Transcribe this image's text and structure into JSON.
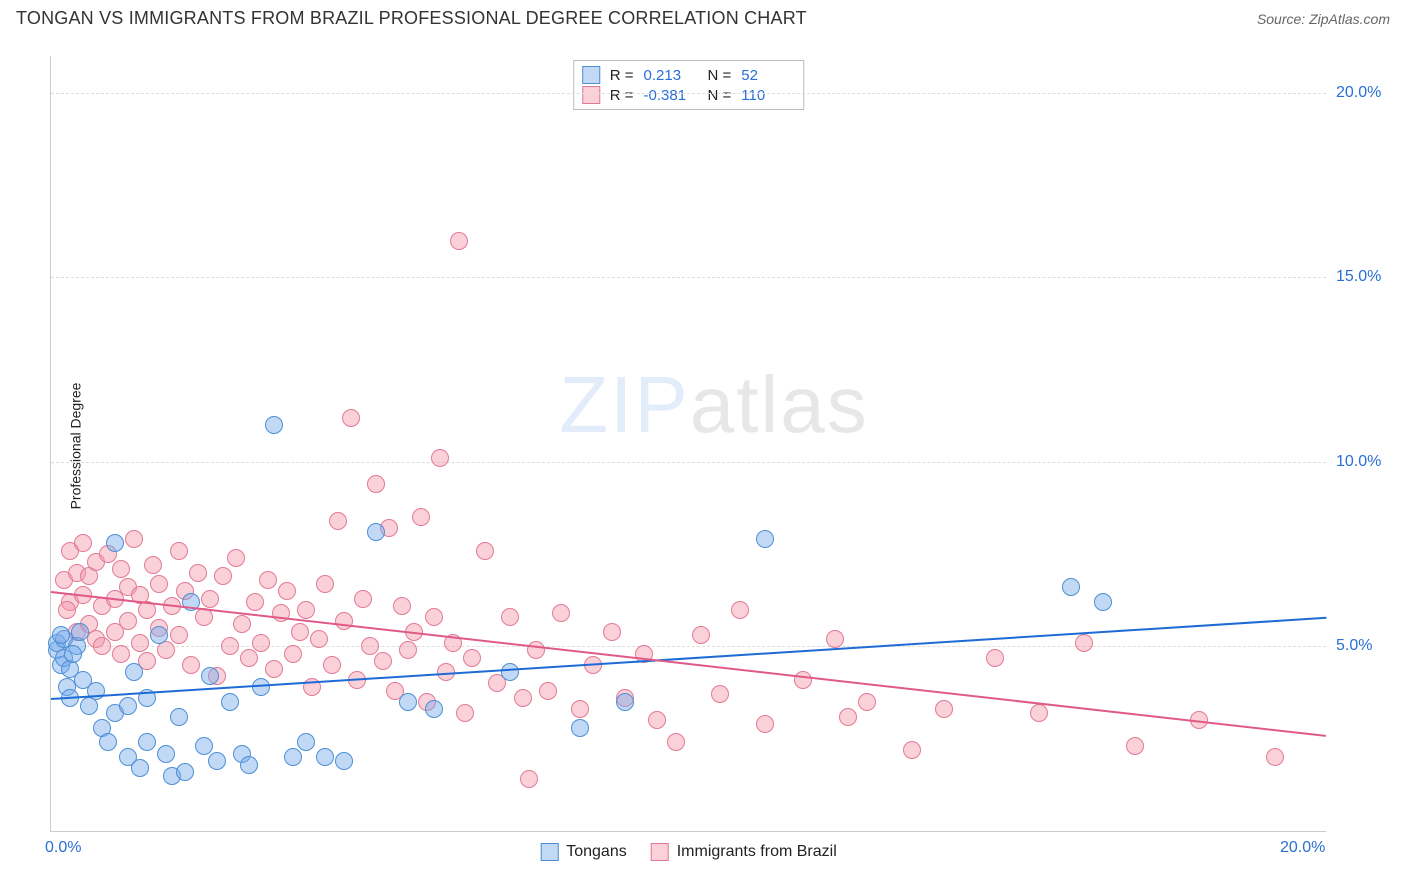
{
  "header": {
    "title": "TONGAN VS IMMIGRANTS FROM BRAZIL PROFESSIONAL DEGREE CORRELATION CHART",
    "source": "Source: ZipAtlas.com"
  },
  "chart": {
    "type": "scatter",
    "ylabel": "Professional Degree",
    "xlim": [
      0,
      20
    ],
    "ylim": [
      0,
      21
    ],
    "xticks": [
      0,
      20
    ],
    "xtick_labels": [
      "0.0%",
      "20.0%"
    ],
    "yticks": [
      5,
      10,
      15,
      20
    ],
    "ytick_labels": [
      "5.0%",
      "10.0%",
      "15.0%",
      "20.0%"
    ],
    "grid_color": "#dddddd",
    "background": "#ffffff",
    "point_radius": 9,
    "series": [
      {
        "name": "Tongans",
        "fill": "rgba(120,170,235,0.45)",
        "stroke": "#4d8fd6",
        "R": "0.213",
        "N": "52",
        "trend": {
          "x1": 0,
          "y1": 3.6,
          "x2": 20,
          "y2": 5.8,
          "color": "#1e6bd6",
          "width": 2
        },
        "points": [
          [
            0.1,
            4.9
          ],
          [
            0.1,
            5.1
          ],
          [
            0.15,
            4.5
          ],
          [
            0.2,
            4.7
          ],
          [
            0.2,
            5.2
          ],
          [
            0.25,
            3.9
          ],
          [
            0.3,
            4.4
          ],
          [
            0.3,
            3.6
          ],
          [
            0.4,
            5.0
          ],
          [
            0.5,
            4.1
          ],
          [
            0.6,
            3.4
          ],
          [
            0.7,
            3.8
          ],
          [
            0.8,
            2.8
          ],
          [
            0.9,
            2.4
          ],
          [
            1.0,
            7.8
          ],
          [
            1.0,
            3.2
          ],
          [
            1.2,
            2.0
          ],
          [
            1.2,
            3.4
          ],
          [
            1.3,
            4.3
          ],
          [
            1.4,
            1.7
          ],
          [
            1.5,
            2.4
          ],
          [
            1.5,
            3.6
          ],
          [
            1.7,
            5.3
          ],
          [
            1.8,
            2.1
          ],
          [
            1.9,
            1.5
          ],
          [
            2.0,
            3.1
          ],
          [
            2.1,
            1.6
          ],
          [
            2.2,
            6.2
          ],
          [
            2.4,
            2.3
          ],
          [
            2.5,
            4.2
          ],
          [
            2.6,
            1.9
          ],
          [
            2.8,
            3.5
          ],
          [
            3.0,
            2.1
          ],
          [
            3.1,
            1.8
          ],
          [
            3.3,
            3.9
          ],
          [
            3.5,
            11.0
          ],
          [
            3.8,
            2.0
          ],
          [
            4.0,
            2.4
          ],
          [
            4.3,
            2.0
          ],
          [
            4.6,
            1.9
          ],
          [
            5.1,
            8.1
          ],
          [
            5.6,
            3.5
          ],
          [
            6.0,
            3.3
          ],
          [
            7.2,
            4.3
          ],
          [
            8.3,
            2.8
          ],
          [
            9.0,
            3.5
          ],
          [
            11.2,
            7.9
          ],
          [
            16.0,
            6.6
          ],
          [
            16.5,
            6.2
          ],
          [
            0.15,
            5.3
          ],
          [
            0.35,
            4.8
          ],
          [
            0.45,
            5.4
          ]
        ]
      },
      {
        "name": "Immigrants from Brazil",
        "fill": "rgba(245,150,170,0.45)",
        "stroke": "#e27a95",
        "R": "-0.381",
        "N": "110",
        "trend": {
          "x1": 0,
          "y1": 6.5,
          "x2": 20,
          "y2": 2.6,
          "color": "#e05a89",
          "width": 2
        },
        "points": [
          [
            0.2,
            6.8
          ],
          [
            0.3,
            7.6
          ],
          [
            0.3,
            6.2
          ],
          [
            0.4,
            5.4
          ],
          [
            0.4,
            7.0
          ],
          [
            0.5,
            6.4
          ],
          [
            0.5,
            7.8
          ],
          [
            0.6,
            5.6
          ],
          [
            0.6,
            6.9
          ],
          [
            0.7,
            5.2
          ],
          [
            0.7,
            7.3
          ],
          [
            0.8,
            6.1
          ],
          [
            0.8,
            5.0
          ],
          [
            0.9,
            7.5
          ],
          [
            1.0,
            6.3
          ],
          [
            1.0,
            5.4
          ],
          [
            1.1,
            7.1
          ],
          [
            1.1,
            4.8
          ],
          [
            1.2,
            6.6
          ],
          [
            1.2,
            5.7
          ],
          [
            1.3,
            7.9
          ],
          [
            1.4,
            5.1
          ],
          [
            1.4,
            6.4
          ],
          [
            1.5,
            6.0
          ],
          [
            1.5,
            4.6
          ],
          [
            1.6,
            7.2
          ],
          [
            1.7,
            5.5
          ],
          [
            1.7,
            6.7
          ],
          [
            1.8,
            4.9
          ],
          [
            1.9,
            6.1
          ],
          [
            2.0,
            7.6
          ],
          [
            2.0,
            5.3
          ],
          [
            2.1,
            6.5
          ],
          [
            2.2,
            4.5
          ],
          [
            2.3,
            7.0
          ],
          [
            2.4,
            5.8
          ],
          [
            2.5,
            6.3
          ],
          [
            2.6,
            4.2
          ],
          [
            2.7,
            6.9
          ],
          [
            2.8,
            5.0
          ],
          [
            2.9,
            7.4
          ],
          [
            3.0,
            5.6
          ],
          [
            3.1,
            4.7
          ],
          [
            3.2,
            6.2
          ],
          [
            3.3,
            5.1
          ],
          [
            3.4,
            6.8
          ],
          [
            3.5,
            4.4
          ],
          [
            3.6,
            5.9
          ],
          [
            3.7,
            6.5
          ],
          [
            3.8,
            4.8
          ],
          [
            3.9,
            5.4
          ],
          [
            4.0,
            6.0
          ],
          [
            4.1,
            3.9
          ],
          [
            4.2,
            5.2
          ],
          [
            4.3,
            6.7
          ],
          [
            4.4,
            4.5
          ],
          [
            4.5,
            8.4
          ],
          [
            4.6,
            5.7
          ],
          [
            4.7,
            11.2
          ],
          [
            4.8,
            4.1
          ],
          [
            4.9,
            6.3
          ],
          [
            5.0,
            5.0
          ],
          [
            5.1,
            9.4
          ],
          [
            5.2,
            4.6
          ],
          [
            5.3,
            8.2
          ],
          [
            5.4,
            3.8
          ],
          [
            5.5,
            6.1
          ],
          [
            5.6,
            4.9
          ],
          [
            5.7,
            5.4
          ],
          [
            5.8,
            8.5
          ],
          [
            5.9,
            3.5
          ],
          [
            6.0,
            5.8
          ],
          [
            6.1,
            10.1
          ],
          [
            6.2,
            4.3
          ],
          [
            6.3,
            5.1
          ],
          [
            6.4,
            16.0
          ],
          [
            6.5,
            3.2
          ],
          [
            6.6,
            4.7
          ],
          [
            6.8,
            7.6
          ],
          [
            7.0,
            4.0
          ],
          [
            7.2,
            5.8
          ],
          [
            7.4,
            3.6
          ],
          [
            7.5,
            1.4
          ],
          [
            7.6,
            4.9
          ],
          [
            7.8,
            3.8
          ],
          [
            8.0,
            5.9
          ],
          [
            8.3,
            3.3
          ],
          [
            8.5,
            4.5
          ],
          [
            8.8,
            5.4
          ],
          [
            9.0,
            3.6
          ],
          [
            9.3,
            4.8
          ],
          [
            9.5,
            3.0
          ],
          [
            9.8,
            2.4
          ],
          [
            10.2,
            5.3
          ],
          [
            10.5,
            3.7
          ],
          [
            10.8,
            6.0
          ],
          [
            11.2,
            2.9
          ],
          [
            11.8,
            4.1
          ],
          [
            12.3,
            5.2
          ],
          [
            12.5,
            3.1
          ],
          [
            12.8,
            3.5
          ],
          [
            13.5,
            2.2
          ],
          [
            14.0,
            3.3
          ],
          [
            14.8,
            4.7
          ],
          [
            15.5,
            3.2
          ],
          [
            16.2,
            5.1
          ],
          [
            17.0,
            2.3
          ],
          [
            18.0,
            3.0
          ],
          [
            19.2,
            2.0
          ],
          [
            0.25,
            6.0
          ]
        ]
      }
    ],
    "bottom_legend": {
      "items": [
        "Tongans",
        "Immigrants from Brazil"
      ]
    },
    "watermark": {
      "zip": "ZIP",
      "atlas": "atlas"
    }
  }
}
